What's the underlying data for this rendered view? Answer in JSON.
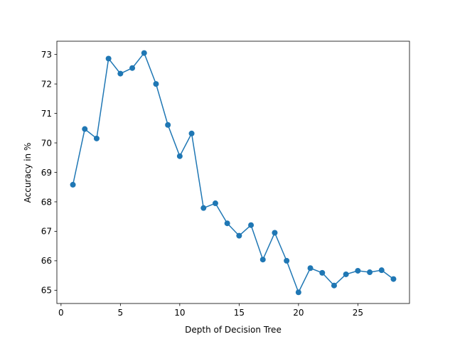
{
  "chart_data": {
    "type": "line",
    "xlabel": "Depth of Decision Tree",
    "ylabel": "Accuracy in %",
    "xlim": [
      -0.35,
      29.35
    ],
    "ylim": [
      64.55,
      73.45
    ],
    "xticks": [
      0,
      5,
      10,
      15,
      20,
      25
    ],
    "yticks": [
      65,
      66,
      67,
      68,
      69,
      70,
      71,
      72,
      73
    ],
    "grid": false,
    "line_color": "#1f77b4",
    "marker": "circle",
    "series": [
      {
        "x": [
          1,
          2,
          3,
          4,
          5,
          6,
          7,
          8,
          9,
          10,
          11,
          12,
          13,
          14,
          15,
          16,
          17,
          18,
          19,
          20,
          21,
          22,
          23,
          24,
          25,
          26,
          27,
          28
        ],
        "values": [
          68.58,
          70.47,
          70.15,
          72.86,
          72.35,
          72.54,
          73.05,
          72.0,
          70.61,
          69.55,
          70.32,
          67.79,
          67.95,
          67.27,
          66.85,
          67.21,
          66.04,
          66.95,
          66.0,
          64.93,
          65.75,
          65.59,
          65.16,
          65.54,
          65.66,
          65.61,
          65.68,
          65.38
        ]
      }
    ]
  }
}
